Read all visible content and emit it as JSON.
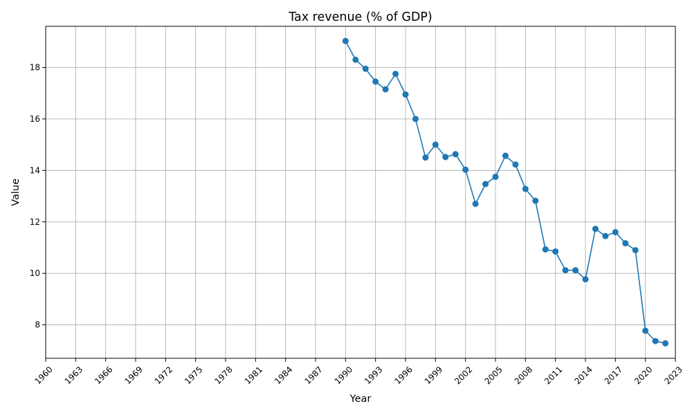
{
  "chart_data": {
    "type": "line",
    "title": "Tax revenue (% of GDP)",
    "xlabel": "Year",
    "ylabel": "Value",
    "xlim": [
      1960,
      2023
    ],
    "ylim": [
      6.7,
      19.6
    ],
    "xticks": [
      1960,
      1963,
      1966,
      1969,
      1972,
      1975,
      1978,
      1981,
      1984,
      1987,
      1990,
      1993,
      1996,
      1999,
      2002,
      2005,
      2008,
      2011,
      2014,
      2017,
      2020,
      2023
    ],
    "yticks": [
      8,
      10,
      12,
      14,
      16,
      18
    ],
    "grid": true,
    "color": "#1f77b4",
    "marker": "circle",
    "x": [
      1990,
      1991,
      1992,
      1993,
      1994,
      1995,
      1996,
      1997,
      1998,
      1999,
      2000,
      2001,
      2002,
      2003,
      2004,
      2005,
      2006,
      2007,
      2008,
      2009,
      2010,
      2011,
      2012,
      2013,
      2014,
      2015,
      2016,
      2017,
      2018,
      2019,
      2020,
      2021,
      2022
    ],
    "y": [
      19.03,
      18.3,
      17.95,
      17.45,
      17.15,
      17.75,
      16.95,
      16.0,
      14.5,
      15.0,
      14.52,
      14.63,
      14.03,
      12.7,
      13.47,
      13.75,
      14.57,
      14.23,
      13.28,
      12.82,
      10.93,
      10.85,
      10.12,
      10.12,
      9.77,
      11.73,
      11.45,
      11.6,
      11.17,
      10.9,
      7.77,
      7.37,
      7.28
    ]
  }
}
